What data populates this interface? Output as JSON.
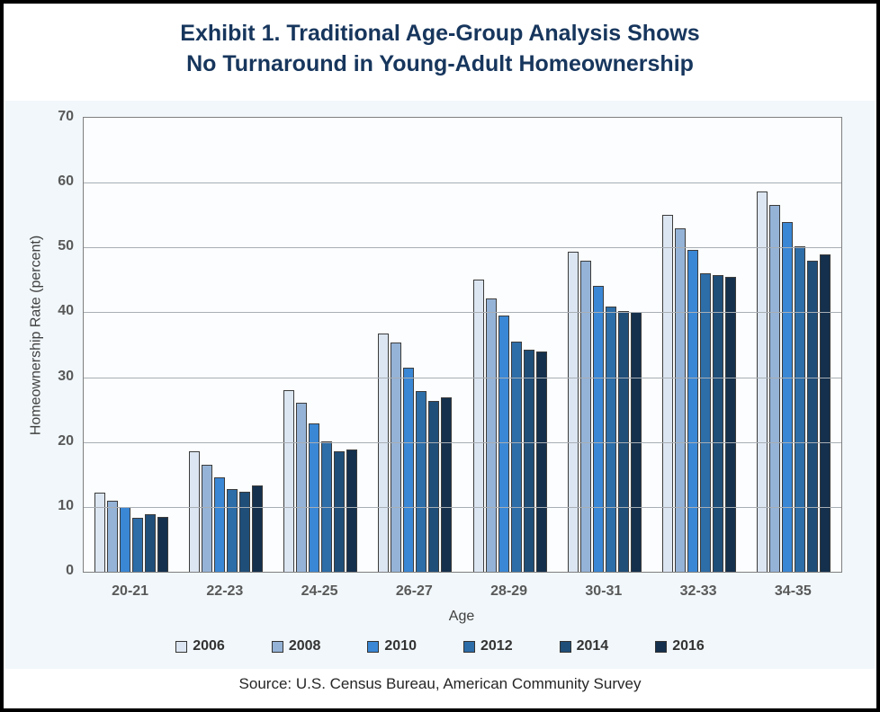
{
  "title": {
    "line1": "Exhibit 1. Traditional Age-Group Analysis Shows",
    "line2": "No Turnaround in Young-Adult Homeownership"
  },
  "source": "Source: U.S. Census Bureau, American Community Survey",
  "colors": {
    "title_text": "#17365d",
    "axis_text": "#595959",
    "gridline": "#a8aeb4",
    "plot_background": "#fbfdfe",
    "band_background": "#f1f7fa"
  },
  "chart_data": {
    "type": "bar",
    "title": "Exhibit 1. Traditional Age-Group Analysis Shows No Turnaround in Young-Adult Homeownership",
    "xlabel": "Age",
    "ylabel": "Homeownership Rate (percent)",
    "ylim": [
      0,
      70
    ],
    "ytick_interval": 10,
    "grid": true,
    "legend_position": "bottom",
    "categories": [
      "20-21",
      "22-23",
      "24-25",
      "26-27",
      "28-29",
      "30-31",
      "32-33",
      "34-35"
    ],
    "series": [
      {
        "name": "2006",
        "color": "#dce6f2",
        "values": [
          12.2,
          18.6,
          28.0,
          36.8,
          45.0,
          49.4,
          55.1,
          58.6
        ]
      },
      {
        "name": "2008",
        "color": "#95b3d7",
        "values": [
          11.0,
          16.5,
          26.0,
          35.4,
          42.2,
          48.0,
          53.0,
          56.5
        ]
      },
      {
        "name": "2010",
        "color": "#3a87d5",
        "values": [
          10.0,
          14.6,
          22.9,
          31.5,
          39.5,
          44.1,
          49.6,
          53.9
        ]
      },
      {
        "name": "2012",
        "color": "#2d6da8",
        "values": [
          8.3,
          12.7,
          20.1,
          27.9,
          35.5,
          40.9,
          46.0,
          50.2
        ]
      },
      {
        "name": "2014",
        "color": "#1f4e79",
        "values": [
          8.9,
          12.3,
          18.6,
          26.4,
          34.2,
          40.2,
          45.7,
          48.0
        ]
      },
      {
        "name": "2016",
        "color": "#14304d",
        "values": [
          8.5,
          13.3,
          18.8,
          26.9,
          33.9,
          40.1,
          45.4,
          48.9
        ]
      }
    ]
  }
}
